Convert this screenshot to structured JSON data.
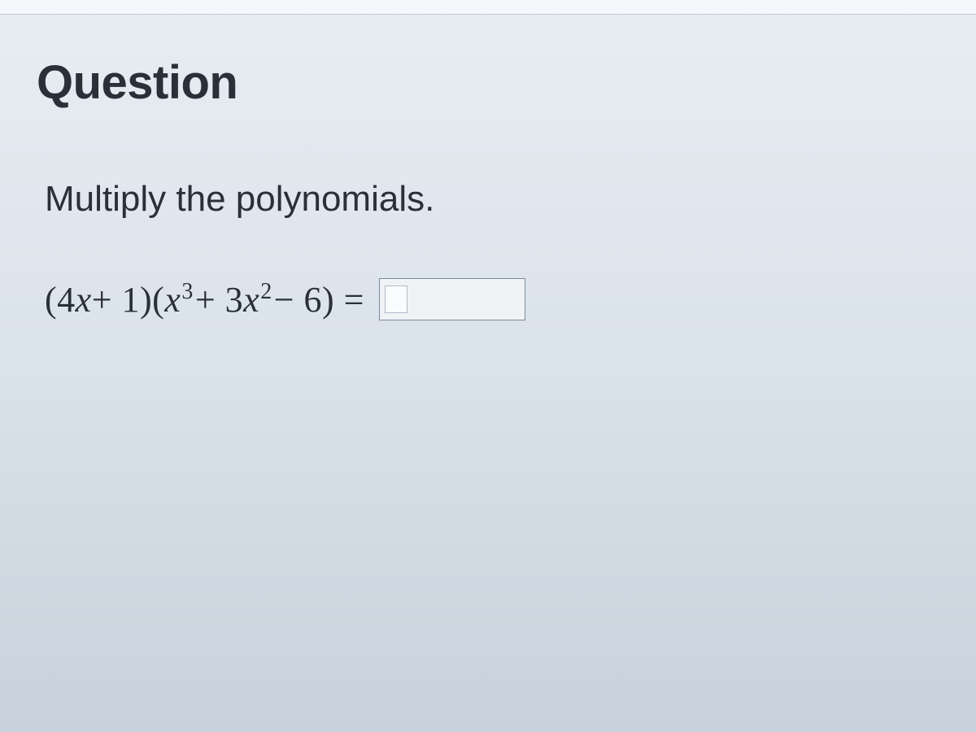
{
  "heading": "Question",
  "instruction": "Multiply the polynomials.",
  "equation": {
    "lhs_open": "(4",
    "var1": "x",
    "plus1": " + 1)(",
    "var2": "x",
    "exp1": "3",
    "plus2": " + 3",
    "var3": "x",
    "exp2": "2",
    "minus": " − 6) = "
  },
  "colors": {
    "text": "#2a3038",
    "answer_border": "#7a8aa0",
    "answer_bg": "#f0f3f6",
    "inner_border": "#b0bac6"
  }
}
